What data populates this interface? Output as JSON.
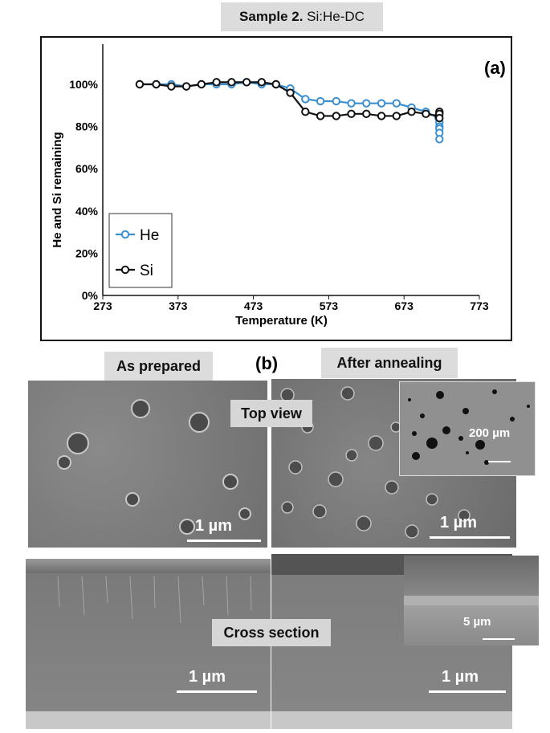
{
  "header": {
    "title_bold": "Sample 2.",
    "title_rest": " Si:He-DC"
  },
  "panel_a_label": "(a)",
  "panel_b_label": "(b)",
  "chart_data": {
    "type": "line",
    "xlabel": "Temperature (K)",
    "ylabel": "He and Si  remaining",
    "xlim": [
      273,
      773
    ],
    "ylim": [
      0,
      100
    ],
    "x_ticks": [
      "273",
      "373",
      "473",
      "573",
      "673",
      "773"
    ],
    "y_ticks": [
      "0%",
      "20%",
      "40%",
      "60%",
      "80%",
      "100%"
    ],
    "legend_position": "bottom-left",
    "series": [
      {
        "name": "He",
        "color": "#3b8fce",
        "x": [
          322,
          344,
          364,
          384,
          404,
          424,
          444,
          464,
          484,
          503,
          522,
          542,
          562,
          583,
          603,
          623,
          643,
          663,
          683,
          702,
          719,
          720,
          720,
          720,
          720,
          720
        ],
        "y": [
          100,
          100,
          100,
          99,
          100,
          100,
          100,
          101,
          100,
          100,
          98,
          93,
          92,
          92,
          91,
          91,
          91,
          91,
          89,
          87,
          84,
          82,
          80,
          79,
          77,
          74
        ]
      },
      {
        "name": "Si",
        "color": "#111111",
        "x": [
          322,
          344,
          364,
          384,
          404,
          424,
          444,
          464,
          484,
          503,
          522,
          542,
          562,
          583,
          603,
          623,
          643,
          663,
          683,
          702,
          719,
          720,
          720,
          720
        ],
        "y": [
          100,
          100,
          99,
          99,
          100,
          101,
          101,
          101,
          101,
          100,
          96,
          87,
          85,
          85,
          86,
          86,
          85,
          85,
          87,
          86,
          85,
          87,
          86,
          84
        ]
      }
    ]
  },
  "images": {
    "as_prepared_label": "As prepared",
    "after_annealing_label": "After annealing",
    "top_view_label": "Top view",
    "cross_section_label": "Cross section",
    "scale_1um": "1 µm",
    "scale_200um": "200 µm",
    "scale_5um": "5 µm"
  }
}
